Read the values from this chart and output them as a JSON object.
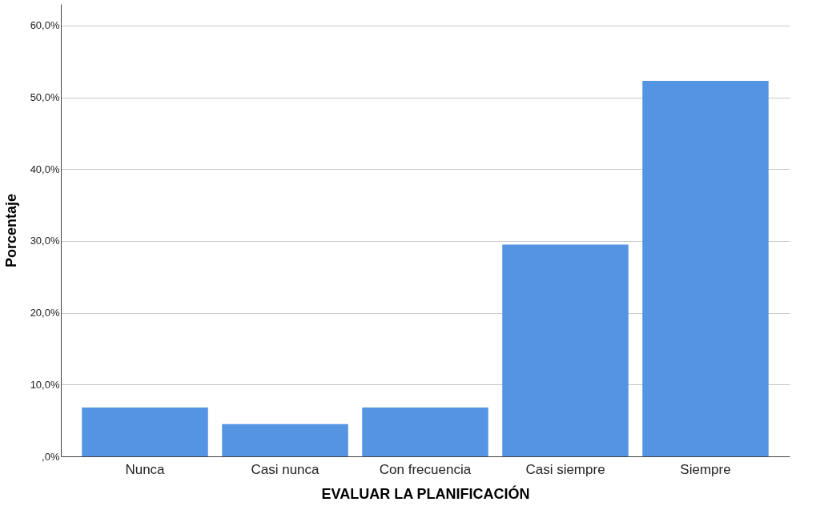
{
  "chart_data": {
    "type": "bar",
    "xlabel": "EVALUAR LA PLANIFICACIÓN",
    "ylabel": "Porcentaje",
    "categories": [
      "Nunca",
      "Casi nunca",
      "Con frecuencia",
      "Casi siempre",
      "Siempre"
    ],
    "values": [
      6.8,
      4.5,
      6.8,
      29.5,
      52.3
    ],
    "color": "#5494e3",
    "ylim": [
      0,
      63
    ],
    "yticks": [
      {
        "value": 0,
        "label": ",0%"
      },
      {
        "value": 10,
        "label": "10,0%"
      },
      {
        "value": 20,
        "label": "20,0%"
      },
      {
        "value": 30,
        "label": "30,0%"
      },
      {
        "value": 40,
        "label": "40,0%"
      },
      {
        "value": 50,
        "label": "50,0%"
      },
      {
        "value": 60,
        "label": "60,0%"
      }
    ],
    "grid": "y"
  }
}
